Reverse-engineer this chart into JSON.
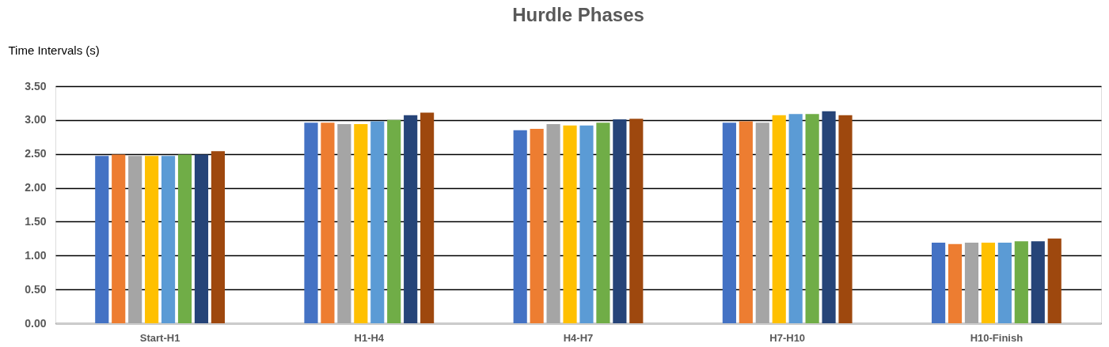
{
  "chart_data": {
    "type": "bar",
    "title": "Hurdle Phases",
    "ylabel": "Time Intervals (s)",
    "categories": [
      "Start-H1",
      "H1-H4",
      "H4-H7",
      "H7-H10",
      "H10-Finish"
    ],
    "series": [
      {
        "color": "#4472c4",
        "values": [
          2.47,
          2.96,
          2.85,
          2.96,
          1.19
        ]
      },
      {
        "color": "#ed7d31",
        "values": [
          2.49,
          2.96,
          2.87,
          2.98,
          1.17
        ]
      },
      {
        "color": "#a5a5a5",
        "values": [
          2.47,
          2.94,
          2.94,
          2.96,
          1.19
        ]
      },
      {
        "color": "#ffc000",
        "values": [
          2.47,
          2.94,
          2.92,
          3.07,
          1.19
        ]
      },
      {
        "color": "#5b9bd5",
        "values": [
          2.47,
          2.98,
          2.92,
          3.09,
          1.19
        ]
      },
      {
        "color": "#70ad47",
        "values": [
          2.49,
          3.0,
          2.96,
          3.09,
          1.21
        ]
      },
      {
        "color": "#264478",
        "values": [
          2.49,
          3.07,
          3.01,
          3.13,
          1.21
        ]
      },
      {
        "color": "#9e480e",
        "values": [
          2.54,
          3.11,
          3.02,
          3.07,
          1.25
        ]
      }
    ],
    "ylim": [
      0,
      3.5
    ],
    "yticks": [
      {
        "value": 0,
        "label": "0.00"
      },
      {
        "value": 0.5,
        "label": "0.50"
      },
      {
        "value": 1,
        "label": "1.00"
      },
      {
        "value": 1.5,
        "label": "1.50"
      },
      {
        "value": 2,
        "label": "2.00"
      },
      {
        "value": 2.5,
        "label": "2.50"
      },
      {
        "value": 3,
        "label": "3.00"
      },
      {
        "value": 3.5,
        "label": "3.50"
      }
    ],
    "grid": "y",
    "legend": false
  }
}
